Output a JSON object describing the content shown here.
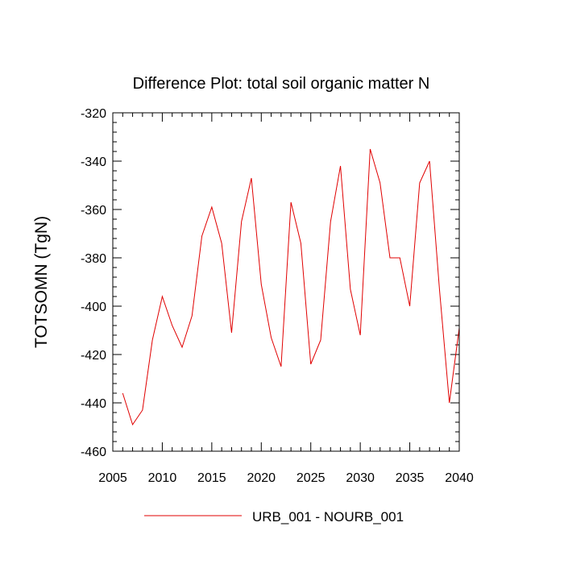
{
  "chart_data": {
    "type": "line",
    "title": "Difference Plot: total soil organic matter N",
    "xlabel": "",
    "ylabel": "TOTSOMN  (TgN)",
    "xlim": [
      2005,
      2040
    ],
    "ylim": [
      -460,
      -320
    ],
    "xticks": [
      2005,
      2010,
      2015,
      2020,
      2025,
      2030,
      2035,
      2040
    ],
    "yticks": [
      -460,
      -440,
      -420,
      -400,
      -380,
      -360,
      -340,
      -320
    ],
    "grid": false,
    "legend_position": "bottom-center",
    "series": [
      {
        "name": "URB_001 - NOURB_001",
        "color": "#e00000",
        "x": [
          2006,
          2007,
          2008,
          2009,
          2010,
          2011,
          2012,
          2013,
          2014,
          2015,
          2016,
          2017,
          2018,
          2019,
          2020,
          2021,
          2022,
          2023,
          2024,
          2025,
          2026,
          2027,
          2028,
          2029,
          2030,
          2031,
          2032,
          2033,
          2034,
          2035,
          2036,
          2037,
          2038,
          2039,
          2040
        ],
        "y": [
          -436,
          -449,
          -443,
          -414,
          -396,
          -408,
          -417,
          -404,
          -371,
          -359,
          -374,
          -411,
          -365,
          -347,
          -391,
          -413,
          -425,
          -357,
          -374,
          -424,
          -414,
          -365,
          -342,
          -393,
          -412,
          -335,
          -349,
          -380,
          -380,
          -400,
          -349,
          -340,
          -393,
          -440,
          -409
        ]
      }
    ]
  }
}
